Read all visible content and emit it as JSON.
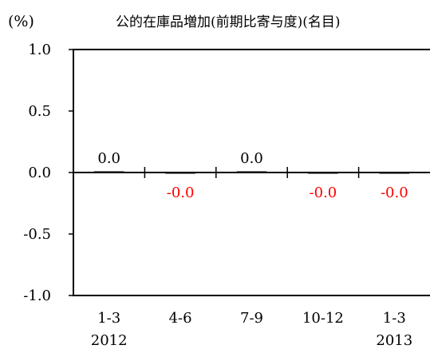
{
  "chart_data": {
    "type": "bar",
    "title": "公的在庫品増加(前期比寄与度)(名目)",
    "ylabel": "(%)",
    "ylim": [
      -1.0,
      1.0
    ],
    "yticks": [
      "1.0",
      "0.5",
      "0.0",
      "-0.5",
      "-1.0"
    ],
    "categories": [
      "1-3",
      "4-6",
      "7-9",
      "10-12",
      "1-3"
    ],
    "year_labels": [
      "2012",
      "",
      "",
      "",
      "2013"
    ],
    "values": [
      0.0,
      -0.0,
      0.0,
      -0.0,
      -0.0
    ],
    "data_labels": [
      "0.0",
      "-0.0",
      "0.0",
      "-0.0",
      "-0.0"
    ],
    "colors": {
      "positive_label": "#000000",
      "negative_label": "#ff0000",
      "axis": "#000000",
      "bar": "#000000"
    }
  }
}
